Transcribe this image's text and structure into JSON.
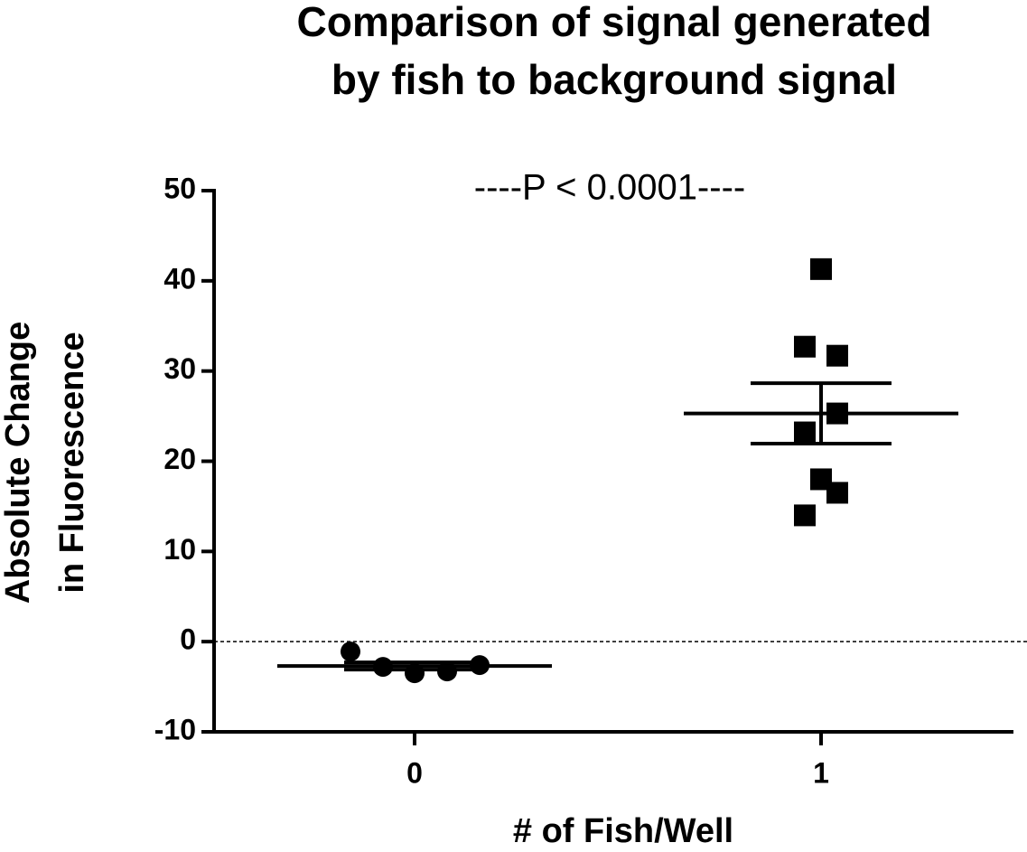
{
  "chart_data": {
    "type": "dot",
    "title": [
      "Comparison of signal generated",
      "by fish to background signal"
    ],
    "annotation": "----P < 0.0001----",
    "x_label": "# of Fish/Well",
    "y_label": [
      "Absolute Change",
      "in  Fluorescence"
    ],
    "categories": [
      "0",
      "1"
    ],
    "markers": [
      "circle",
      "square"
    ],
    "color": "#000000",
    "points": [
      [
        -1.1,
        -2.8,
        -3.5,
        -3.3,
        -2.6
      ],
      [
        41.3,
        32.7,
        31.7,
        25.3,
        23.2,
        18.0,
        16.5,
        14.0
      ]
    ],
    "means": [
      -2.7,
      25.3
    ],
    "sems": [
      0.4,
      3.35
    ],
    "ylim": [
      -10,
      50
    ],
    "yticks": [
      -10,
      0,
      10,
      20,
      30,
      40,
      50
    ],
    "reference_line": 0
  }
}
